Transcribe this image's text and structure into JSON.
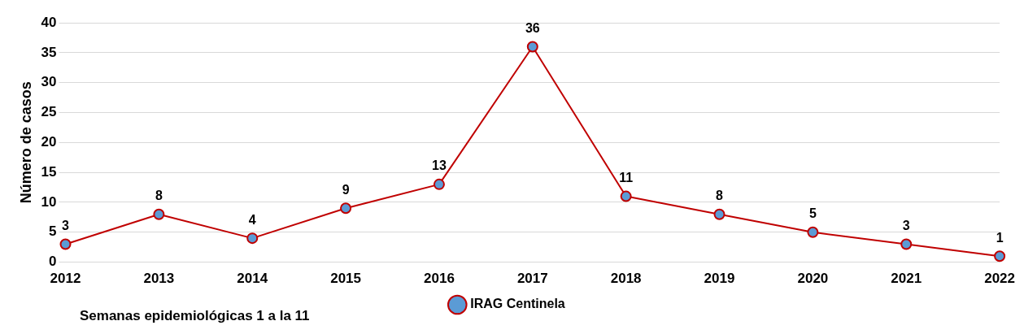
{
  "chart_data": {
    "type": "line",
    "categories": [
      "2012",
      "2013",
      "2014",
      "2015",
      "2016",
      "2017",
      "2018",
      "2019",
      "2020",
      "2021",
      "2022"
    ],
    "series": [
      {
        "name": "IRAG Centinela",
        "color": "#c00000",
        "values": [
          3,
          8,
          4,
          9,
          13,
          36,
          11,
          8,
          5,
          3,
          1
        ]
      }
    ],
    "ylabel": "Número de casos",
    "ylim": [
      0,
      40
    ],
    "yticks": [
      0,
      5,
      10,
      15,
      20,
      25,
      30,
      35,
      40
    ],
    "grid": "y",
    "legend": "bottom",
    "marker": "circle",
    "data_labels": true,
    "annotations": [
      "Semanas epidemiológicas 1 a la 11"
    ]
  }
}
